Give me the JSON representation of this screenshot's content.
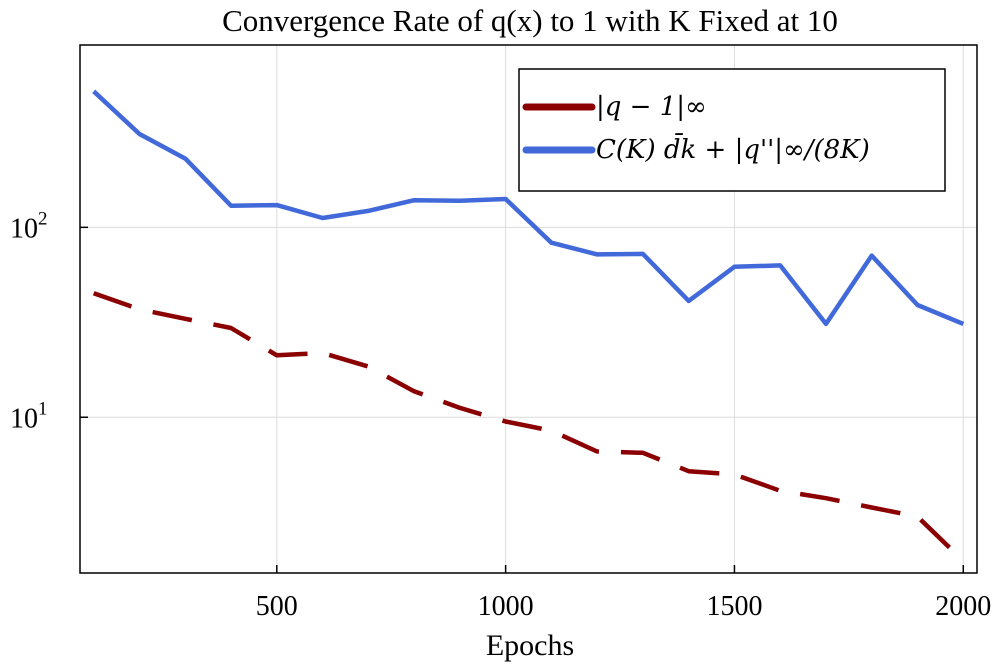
{
  "chart_data": {
    "type": "line",
    "title": "Convergence Rate of q(x) to 1 with K Fixed at 10",
    "xlabel": "Epochs",
    "ylabel": "",
    "y_scale": "log",
    "xlim": [
      70,
      2030
    ],
    "ylim_log10": [
      0.18,
      2.96
    ],
    "x_ticks": [
      500,
      1000,
      1500,
      2000
    ],
    "x_tick_labels": [
      "500",
      "1000",
      "1500",
      "2000"
    ],
    "y_ticks": [
      10,
      100
    ],
    "y_tick_labels": [
      {
        "base": "10",
        "exp": "1"
      },
      {
        "base": "10",
        "exp": "2"
      }
    ],
    "grid": true,
    "legend_position": "top-right",
    "x": [
      100,
      200,
      300,
      400,
      500,
      600,
      700,
      800,
      900,
      1000,
      1100,
      1200,
      1300,
      1400,
      1500,
      1600,
      1700,
      1800,
      1900,
      2000
    ],
    "series": [
      {
        "name": "|q − 1|∞",
        "color": "#8b0000",
        "dash": "dashed",
        "values": [
          45,
          37,
          33,
          29.5,
          21.2,
          21.8,
          18.5,
          13.7,
          11.2,
          9.5,
          8.5,
          6.6,
          6.5,
          5.2,
          5.0,
          4.1,
          3.75,
          3.35,
          3.0,
          1.75
        ]
      },
      {
        "name": "C(K) d̄k + |q''|∞/(8K)",
        "color": "#4169d9",
        "dash": "solid",
        "values": [
          520,
          310,
          230,
          130,
          131,
          112,
          122,
          139,
          138,
          141,
          83,
          72,
          72.5,
          41,
          62,
          63,
          31,
          71,
          39,
          31
        ]
      }
    ]
  }
}
